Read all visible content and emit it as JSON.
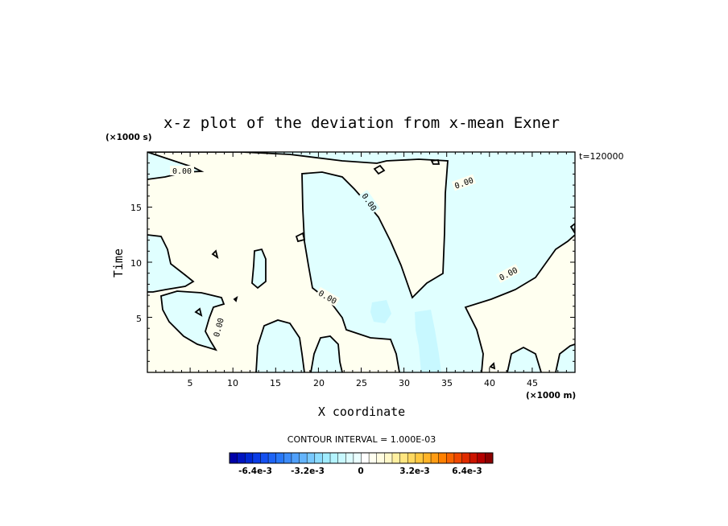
{
  "chart_data": {
    "type": "heatmap",
    "title": "x-z plot of the deviation from x-mean Exner",
    "xlabel": "X coordinate",
    "ylabel": "Time",
    "x_unit": "(×1000 m)",
    "y_unit": "(×1000 s)",
    "time_label": "t=120000",
    "xlim": [
      0,
      50
    ],
    "ylim": [
      0,
      20
    ],
    "x_ticks": [
      "5",
      "10",
      "15",
      "20",
      "25",
      "30",
      "35",
      "40",
      "45"
    ],
    "y_ticks": [
      "5",
      "10",
      "15"
    ],
    "contour_interval": "CONTOUR INTERVAL = 1.000E-03",
    "contour_label": "0.00",
    "colorbar": {
      "labels": [
        "-6.4e-3",
        "-3.2e-3",
        "0",
        "3.2e-3",
        "6.4e-3"
      ],
      "range": [
        -0.008,
        0.008
      ],
      "colors": [
        "#0000a8",
        "#0014c0",
        "#0028d4",
        "#0a3ce6",
        "#1450f0",
        "#1e64f5",
        "#2878f8",
        "#3c8cfa",
        "#50a0fb",
        "#64b4fc",
        "#78c8fd",
        "#8cdcfe",
        "#a0ecff",
        "#b4f4ff",
        "#c8f8ff",
        "#dcfcff",
        "#eafeff",
        "#ffffff",
        "#fffff0",
        "#fffce0",
        "#fff8c8",
        "#fff0a0",
        "#ffe680",
        "#ffd860",
        "#ffc840",
        "#ffb428",
        "#ff9c14",
        "#ff8000",
        "#f86400",
        "#f04800",
        "#e02c00",
        "#cc1400",
        "#b40000",
        "#8c0000"
      ]
    },
    "fill_colors": {
      "negative": "#e0ffff",
      "positive": "#fffff0",
      "weak_negative": "#c8f8ff"
    }
  }
}
